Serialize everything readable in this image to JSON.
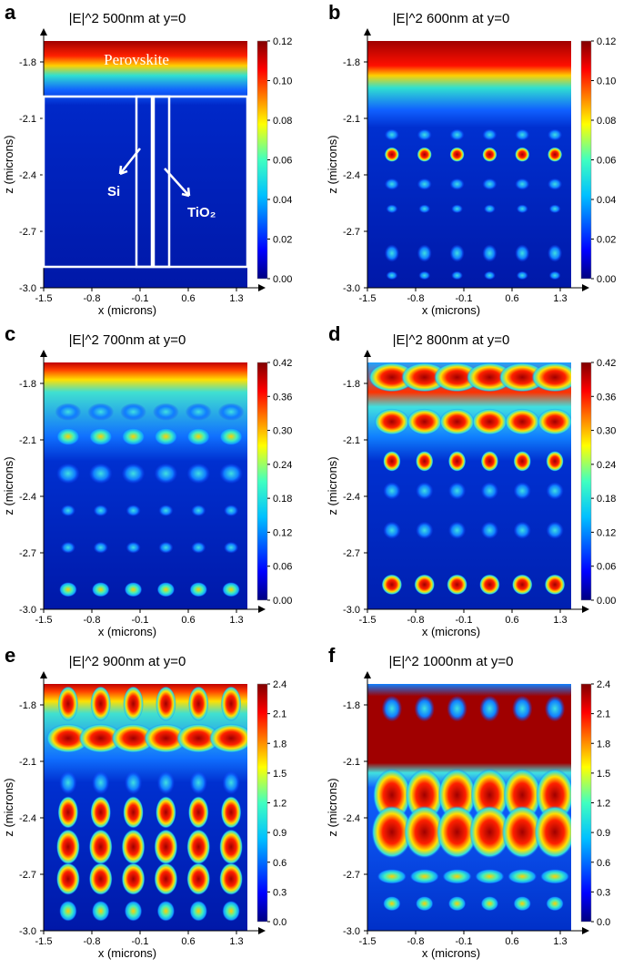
{
  "panels": [
    {
      "letter": "a",
      "title": "|E|^2 500nm at y=0",
      "xlabel": "x (microns)",
      "ylabel": "z (microns)",
      "xticks": [
        "-1.5",
        "-0.8",
        "-0.1",
        "0.6",
        "1.3"
      ],
      "yticks": [
        "-1.8",
        "-2.1",
        "-2.4",
        "-2.7",
        "-3.0"
      ],
      "colorbar_ticks": [
        "0.12",
        "0.10",
        "0.08",
        "0.06",
        "0.04",
        "0.02",
        "0.00"
      ],
      "annotations": [
        "Perovskite",
        "Si",
        "TiO₂"
      ]
    },
    {
      "letter": "b",
      "title": "|E|^2 600nm at y=0",
      "xlabel": "x (microns)",
      "ylabel": "z (microns)",
      "xticks": [
        "-1.5",
        "-0.8",
        "-0.1",
        "0.6",
        "1.3"
      ],
      "yticks": [
        "-1.8",
        "-2.1",
        "-2.4",
        "-2.7",
        "-3.0"
      ],
      "colorbar_ticks": [
        "0.12",
        "0.10",
        "0.08",
        "0.06",
        "0.04",
        "0.02",
        "0.00"
      ]
    },
    {
      "letter": "c",
      "title": "|E|^2 700nm at y=0",
      "xlabel": "x (microns)",
      "ylabel": "z (microns)",
      "xticks": [
        "-1.5",
        "-0.8",
        "-0.1",
        "0.6",
        "1.3"
      ],
      "yticks": [
        "-1.8",
        "-2.1",
        "-2.4",
        "-2.7",
        "-3.0"
      ],
      "colorbar_ticks": [
        "0.42",
        "0.36",
        "0.30",
        "0.24",
        "0.18",
        "0.12",
        "0.06",
        "0.00"
      ]
    },
    {
      "letter": "d",
      "title": "|E|^2 800nm at y=0",
      "xlabel": "x (microns)",
      "ylabel": "z (microns)",
      "xticks": [
        "-1.5",
        "-0.8",
        "-0.1",
        "0.6",
        "1.3"
      ],
      "yticks": [
        "-1.8",
        "-2.1",
        "-2.4",
        "-2.7",
        "-3.0"
      ],
      "colorbar_ticks": [
        "0.42",
        "0.36",
        "0.30",
        "0.24",
        "0.18",
        "0.12",
        "0.06",
        "0.00"
      ]
    },
    {
      "letter": "e",
      "title": "|E|^2 900nm at y=0",
      "xlabel": "x (microns)",
      "ylabel": "z (microns)",
      "xticks": [
        "-1.5",
        "-0.8",
        "-0.1",
        "0.6",
        "1.3"
      ],
      "yticks": [
        "-1.8",
        "-2.1",
        "-2.4",
        "-2.7",
        "-3.0"
      ],
      "colorbar_ticks": [
        "2.4",
        "2.1",
        "1.8",
        "1.5",
        "1.2",
        "0.9",
        "0.6",
        "0.3",
        "0.0"
      ]
    },
    {
      "letter": "f",
      "title": "|E|^2 1000nm at y=0",
      "xlabel": "x (microns)",
      "ylabel": "z (microns)",
      "xticks": [
        "-1.5",
        "-0.8",
        "-0.1",
        "0.6",
        "1.3"
      ],
      "yticks": [
        "-1.8",
        "-2.1",
        "-2.4",
        "-2.7",
        "-3.0"
      ],
      "colorbar_ticks": [
        "2.4",
        "2.1",
        "1.8",
        "1.5",
        "1.2",
        "0.9",
        "0.6",
        "0.3",
        "0.0"
      ]
    }
  ]
}
